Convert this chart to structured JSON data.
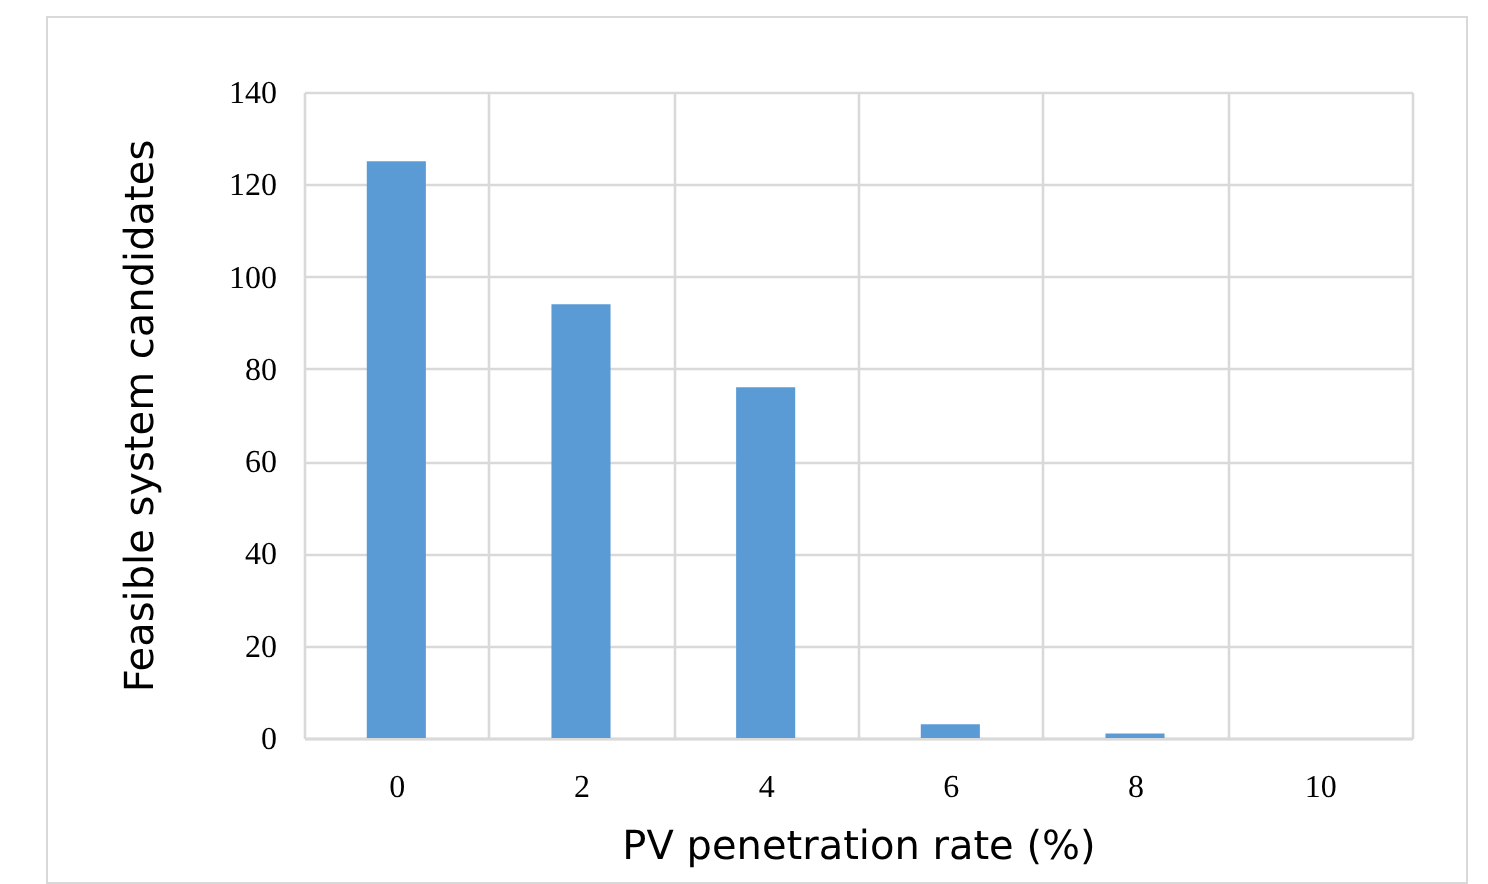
{
  "chart_data": {
    "type": "bar",
    "xlabel": "PV penetration rate (%)",
    "ylabel": "Feasible system candidates",
    "categories": [
      "0",
      "2",
      "4",
      "6",
      "8",
      "10"
    ],
    "values": [
      125,
      94,
      76,
      3,
      1,
      0
    ],
    "color": "#5b9bd5",
    "ylim": [
      0,
      140
    ],
    "yticks": [
      0,
      20,
      40,
      60,
      80,
      100,
      120,
      140
    ],
    "grid": true
  }
}
